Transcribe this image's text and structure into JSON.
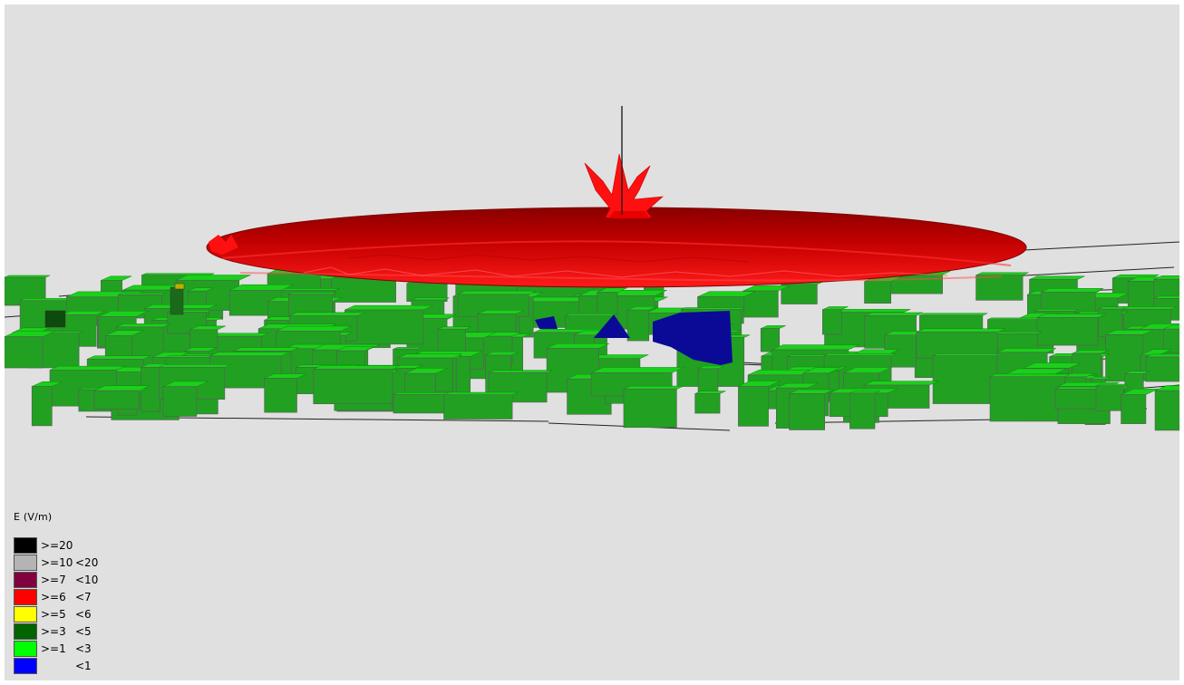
{
  "legend": {
    "title": "E (V/m)",
    "items": [
      {
        "color": "#000000",
        "lower": ">=20",
        "upper": ""
      },
      {
        "color": "#b4b4b4",
        "lower": ">=10",
        "upper": "<20"
      },
      {
        "color": "#800040",
        "lower": ">=7",
        "upper": "<10"
      },
      {
        "color": "#ff0000",
        "lower": ">=6",
        "upper": "<7"
      },
      {
        "color": "#ffff00",
        "lower": ">=5",
        "upper": "<6"
      },
      {
        "color": "#006400",
        "lower": ">=3",
        "upper": "<5"
      },
      {
        "color": "#00ff00",
        "lower": ">=1",
        "upper": "<3"
      },
      {
        "color": "#0000ff",
        "lower": "",
        "upper": "<1"
      }
    ]
  }
}
